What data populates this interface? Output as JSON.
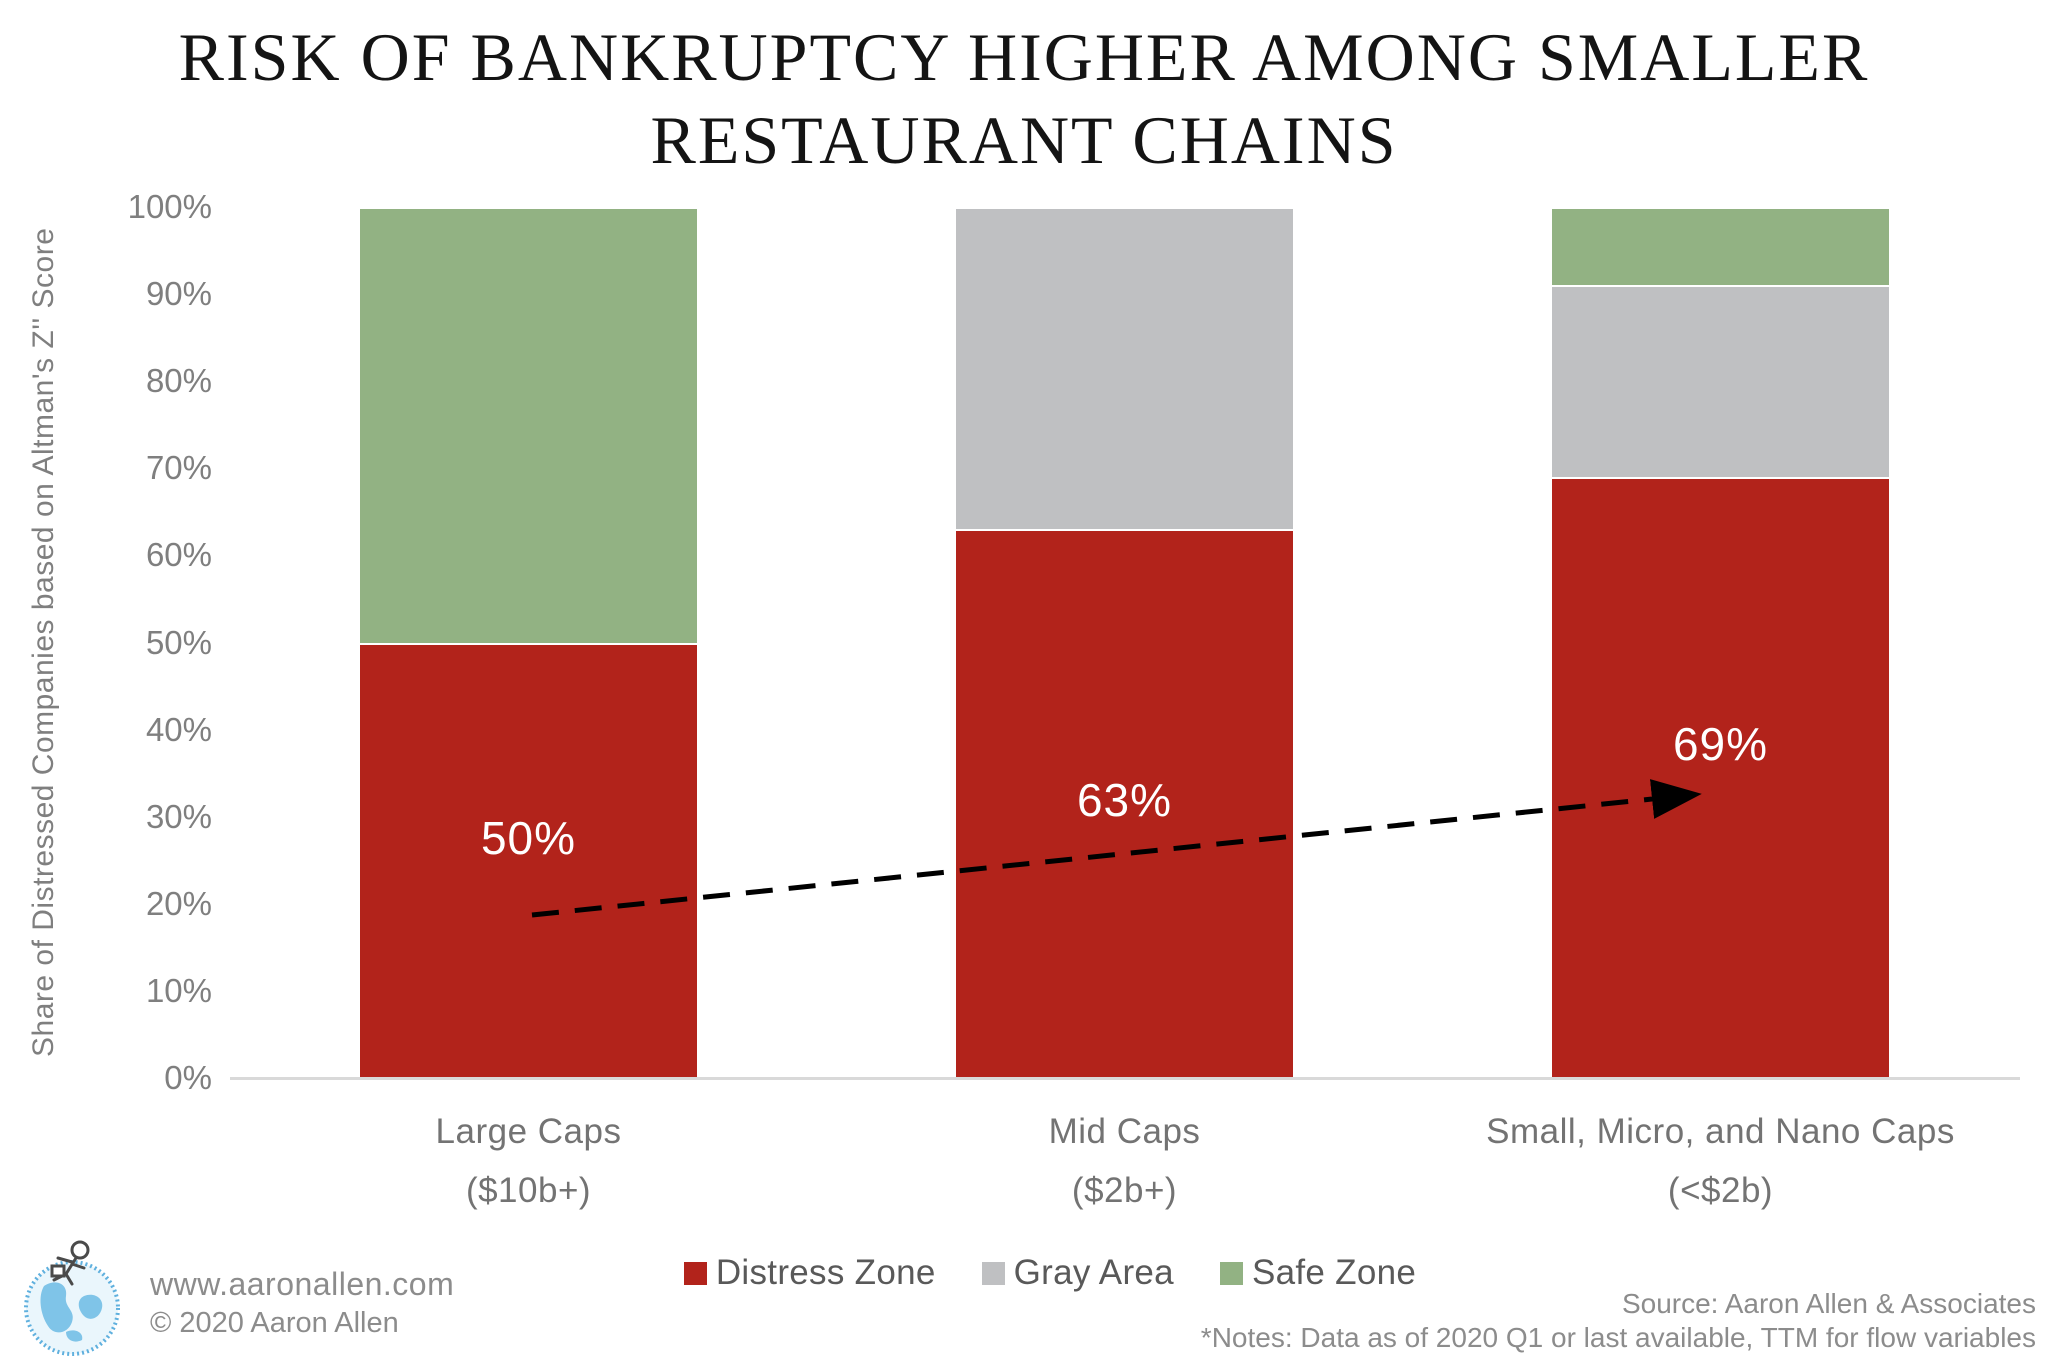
{
  "title": {
    "line1": "RISK OF BANKRUPTCY HIGHER AMONG SMALLER",
    "line2": "RESTAURANT CHAINS"
  },
  "y_axis": {
    "label": "Share of Distressed Companies based on Altman's Z'' Score"
  },
  "chart_data": {
    "type": "bar",
    "stacked": true,
    "unit": "%",
    "ylim": [
      0,
      100
    ],
    "y_ticks": [
      "0%",
      "10%",
      "20%",
      "30%",
      "40%",
      "50%",
      "60%",
      "70%",
      "80%",
      "90%",
      "100%"
    ],
    "grid": false,
    "legend_position": "bottom",
    "categories": [
      {
        "label": "Large Caps",
        "sublabel": "($10b+)"
      },
      {
        "label": "Mid Caps",
        "sublabel": "($2b+)"
      },
      {
        "label": "Small, Micro, and Nano Caps",
        "sublabel": "(<$2b)"
      }
    ],
    "series": [
      {
        "name": "Distress Zone",
        "color": "#B2231B",
        "values": [
          50,
          63,
          69
        ]
      },
      {
        "name": "Gray Area",
        "color": "#BFC0C2",
        "values": [
          0,
          37,
          22
        ]
      },
      {
        "name": "Safe Zone",
        "color": "#92B283",
        "values": [
          50,
          0,
          9
        ]
      }
    ],
    "bar_labels": [
      "50%",
      "63%",
      "69%"
    ],
    "annotation": {
      "type": "dashed-arrow",
      "description": "dashed black arrow rising from first bar label toward third bar label"
    }
  },
  "legend": [
    {
      "label": "Distress Zone",
      "color": "#B2231B"
    },
    {
      "label": "Gray Area",
      "color": "#BFC0C2"
    },
    {
      "label": "Safe Zone",
      "color": "#92B283"
    }
  ],
  "footer": {
    "website": "www.aaronallen.com",
    "copyright": "© 2020 Aaron Allen",
    "source": "Source: Aaron Allen & Associates",
    "notes": "*Notes: Data as of 2020 Q1 or last available, TTM for flow variables",
    "logo": "aaron-allen-globe-runner-logo"
  },
  "colors": {
    "axis_text": "#7F7F7F",
    "category_text": "#737373",
    "legend_text": "#595959",
    "footer_text": "#8C8C8C",
    "baseline": "#D9D9D9",
    "title_text": "#141414",
    "arrow": "#000000",
    "logo_blue": "#5FB0DE"
  }
}
